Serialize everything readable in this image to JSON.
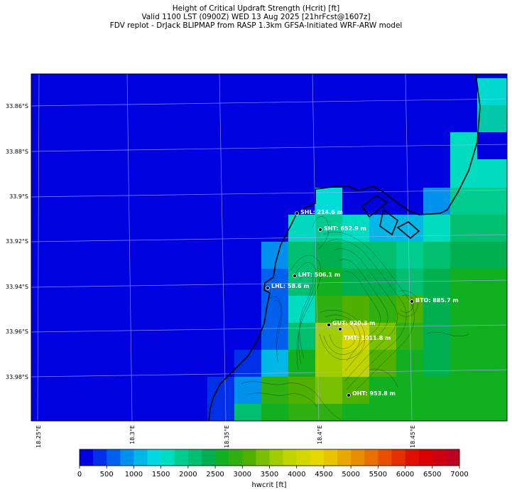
{
  "title": {
    "line1": "Height of Critical Updraft Strength (Hcrit) [ft]",
    "line2": "Valid 1100 LST (0900Z) WED 13 Aug 2025 [21hrFcst@1607z]",
    "line3": "FDV replot - DrJack BLIPMAP from RASP 1.3km GFSA-Initiated WRF-ARW model"
  },
  "axes": {
    "lat_labels": [
      "33.86°S",
      "33.88°S",
      "33.9°S",
      "33.92°S",
      "33.94°S",
      "33.96°S",
      "33.98°S"
    ],
    "lon_labels": [
      "18.25°E",
      "18.3°E",
      "18.35°E",
      "18.4°E",
      "18.45°E"
    ]
  },
  "stations": [
    {
      "code": "SHL",
      "label": "SHL: 214.6 m",
      "value_m": 214.6
    },
    {
      "code": "SHT",
      "label": "SHT: 652.9 m",
      "value_m": 652.9
    },
    {
      "code": "LHT",
      "label": "LHT: 506.1 m",
      "value_m": 506.1
    },
    {
      "code": "LHL",
      "label": "LHL: 58.6 m",
      "value_m": 58.6
    },
    {
      "code": "BTO",
      "label": "BTO: 885.7 m",
      "value_m": 885.7
    },
    {
      "code": "GUT",
      "label": "GUT: 920.3 m",
      "value_m": 920.3
    },
    {
      "code": "TMT",
      "label": "TMT: 1011.8 m",
      "value_m": 1011.8
    },
    {
      "code": "OHT",
      "label": "OHT: 953.8 m",
      "value_m": 953.8
    }
  ],
  "colorbar": {
    "label": "hwcrit [ft]",
    "tick_labels": [
      "0",
      "500",
      "1000",
      "1500",
      "2000",
      "2500",
      "3000",
      "3500",
      "4000",
      "4500",
      "5000",
      "5500",
      "6000",
      "6500",
      "7000"
    ],
    "min": 0,
    "max": 7000,
    "step": 250,
    "colors": [
      "#0000e0",
      "#0030e8",
      "#0060ee",
      "#0090ee",
      "#00b8e8",
      "#00d8e0",
      "#00dcc0",
      "#00cc90",
      "#00c070",
      "#00b050",
      "#10b020",
      "#30b010",
      "#50b000",
      "#78c000",
      "#a0cc00",
      "#c0d400",
      "#d4d800",
      "#e4d800",
      "#e8c400",
      "#e8a800",
      "#e88c00",
      "#e87000",
      "#e85000",
      "#e43000",
      "#e01000",
      "#d80000",
      "#cc0010",
      "#c00020"
    ]
  },
  "grid_values_ft": [
    {
      "col": 0,
      "row": 0,
      "ft": 100
    }
  ]
}
